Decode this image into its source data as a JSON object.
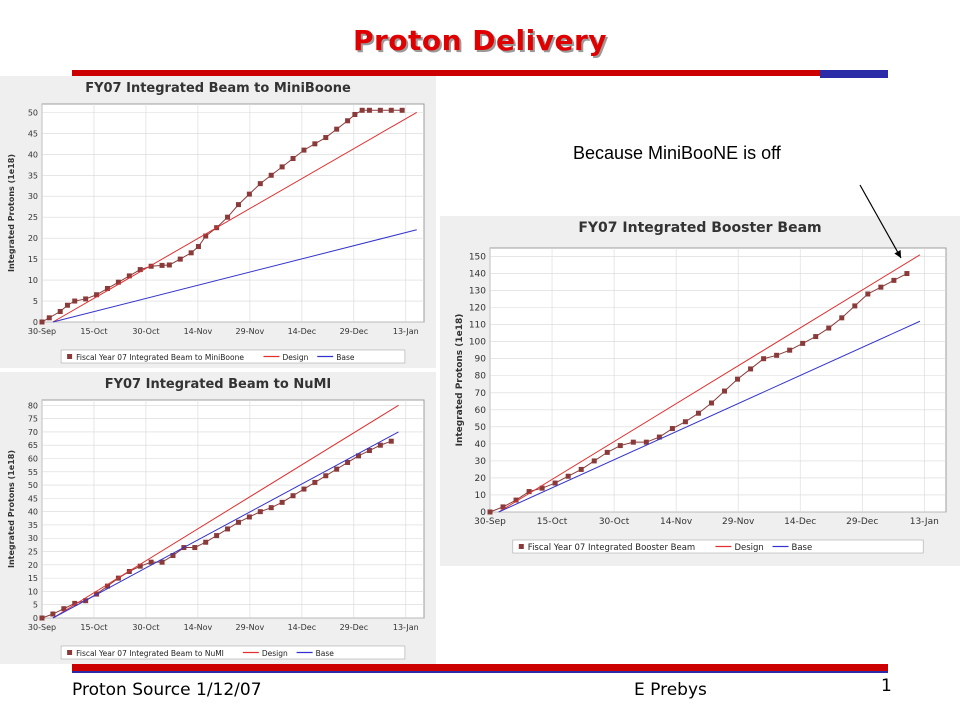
{
  "slide": {
    "title": "Proton Delivery",
    "annotation": "Because MiniBooNE is off",
    "footer_left": "Proton Source 1/12/07",
    "footer_center": "E Prebys",
    "page_number": "1"
  },
  "colors": {
    "title_red": "#e00000",
    "bar_red": "#cc0000",
    "bar_blue": "#2b2ba8",
    "data_marker": "#8b3a3a",
    "design_line": "#e03030",
    "base_line": "#3333cc"
  },
  "chart_data": [
    {
      "id": "miniboone",
      "type": "line",
      "title": "FY07 Integrated Beam to MiniBoone",
      "xlabel": "",
      "ylabel": "Integrated Protons (1e18)",
      "x_ticks": [
        "30-Sep",
        "15-Oct",
        "30-Oct",
        "14-Nov",
        "29-Nov",
        "14-Dec",
        "29-Dec",
        "13-Jan"
      ],
      "xlim": [
        0,
        105
      ],
      "ylim": [
        0,
        52
      ],
      "y_ticks": [
        0,
        5,
        10,
        15,
        20,
        25,
        30,
        35,
        40,
        45,
        50
      ],
      "grid": true,
      "legend": "bottom",
      "series": [
        {
          "name": "Fiscal Year 07 Integrated Beam to MiniBoone",
          "style": "markers",
          "points": [
            [
              0,
              0
            ],
            [
              2,
              1
            ],
            [
              5,
              2.5
            ],
            [
              7,
              4
            ],
            [
              9,
              5
            ],
            [
              12,
              5.5
            ],
            [
              15,
              6.5
            ],
            [
              18,
              8
            ],
            [
              21,
              9.5
            ],
            [
              24,
              11
            ],
            [
              27,
              12.5
            ],
            [
              30,
              13.3
            ],
            [
              33,
              13.5
            ],
            [
              35,
              13.6
            ],
            [
              38,
              15
            ],
            [
              41,
              16.5
            ],
            [
              43,
              18
            ],
            [
              45,
              20.5
            ],
            [
              48,
              22.5
            ],
            [
              51,
              25
            ],
            [
              54,
              28
            ],
            [
              57,
              30.5
            ],
            [
              60,
              33
            ],
            [
              63,
              35
            ],
            [
              66,
              37
            ],
            [
              69,
              39
            ],
            [
              72,
              41
            ],
            [
              75,
              42.5
            ],
            [
              78,
              44
            ],
            [
              81,
              46
            ],
            [
              84,
              48
            ],
            [
              86,
              49.5
            ],
            [
              88,
              50.5
            ],
            [
              90,
              50.5
            ],
            [
              93,
              50.5
            ],
            [
              96,
              50.5
            ],
            [
              99,
              50.5
            ]
          ]
        },
        {
          "name": "Design",
          "style": "line",
          "points": [
            [
              3,
              0
            ],
            [
              103,
              50
            ]
          ]
        },
        {
          "name": "Base",
          "style": "line",
          "points": [
            [
              3,
              0
            ],
            [
              103,
              22
            ]
          ]
        }
      ]
    },
    {
      "id": "numi",
      "type": "line",
      "title": "FY07 Integrated Beam to NuMI",
      "xlabel": "",
      "ylabel": "Integrated Protons (1e18)",
      "x_ticks": [
        "30-Sep",
        "15-Oct",
        "30-Oct",
        "14-Nov",
        "29-Nov",
        "14-Dec",
        "29-Dec",
        "13-Jan"
      ],
      "xlim": [
        0,
        105
      ],
      "ylim": [
        0,
        82
      ],
      "y_ticks": [
        0,
        5,
        10,
        15,
        20,
        25,
        30,
        35,
        40,
        45,
        50,
        55,
        60,
        65,
        70,
        75,
        80
      ],
      "grid": true,
      "legend": "bottom",
      "series": [
        {
          "name": "Fiscal Year 07 Integrated Beam to NuMI",
          "style": "markers",
          "points": [
            [
              0,
              0
            ],
            [
              3,
              1.5
            ],
            [
              6,
              3.5
            ],
            [
              9,
              5.5
            ],
            [
              12,
              6.5
            ],
            [
              15,
              9
            ],
            [
              18,
              12
            ],
            [
              21,
              15
            ],
            [
              24,
              17.5
            ],
            [
              27,
              19.5
            ],
            [
              30,
              21
            ],
            [
              33,
              21
            ],
            [
              36,
              23.5
            ],
            [
              39,
              26.5
            ],
            [
              42,
              26.5
            ],
            [
              45,
              28.5
            ],
            [
              48,
              31
            ],
            [
              51,
              33.5
            ],
            [
              54,
              36
            ],
            [
              57,
              38
            ],
            [
              60,
              40
            ],
            [
              63,
              41.5
            ],
            [
              66,
              43.5
            ],
            [
              69,
              46
            ],
            [
              72,
              48.5
            ],
            [
              75,
              51
            ],
            [
              78,
              53.5
            ],
            [
              81,
              56
            ],
            [
              84,
              58.5
            ],
            [
              87,
              61
            ],
            [
              90,
              63
            ],
            [
              93,
              65
            ],
            [
              96,
              66.5
            ]
          ]
        },
        {
          "name": "Design",
          "style": "line",
          "points": [
            [
              3,
              0
            ],
            [
              98,
              80
            ]
          ]
        },
        {
          "name": "Base",
          "style": "line",
          "points": [
            [
              3,
              0
            ],
            [
              98,
              70
            ]
          ]
        }
      ]
    },
    {
      "id": "booster",
      "type": "line",
      "title": "FY07 Integrated Booster Beam",
      "xlabel": "",
      "ylabel": "Integrated Protons (1e18)",
      "x_ticks": [
        "30-Sep",
        "15-Oct",
        "30-Oct",
        "14-Nov",
        "29-Nov",
        "14-Dec",
        "29-Dec",
        "13-Jan"
      ],
      "xlim": [
        0,
        105
      ],
      "ylim": [
        0,
        155
      ],
      "y_ticks": [
        0,
        10,
        20,
        30,
        40,
        50,
        60,
        70,
        80,
        90,
        100,
        110,
        120,
        130,
        140,
        150
      ],
      "grid": true,
      "legend": "bottom",
      "series": [
        {
          "name": "Fiscal Year 07 Integrated Booster Beam",
          "style": "markers",
          "points": [
            [
              0,
              0
            ],
            [
              3,
              3
            ],
            [
              6,
              7
            ],
            [
              9,
              12
            ],
            [
              12,
              14
            ],
            [
              15,
              17
            ],
            [
              18,
              21
            ],
            [
              21,
              25
            ],
            [
              24,
              30
            ],
            [
              27,
              35
            ],
            [
              30,
              39
            ],
            [
              33,
              41
            ],
            [
              36,
              41
            ],
            [
              39,
              44
            ],
            [
              42,
              49
            ],
            [
              45,
              53
            ],
            [
              48,
              58
            ],
            [
              51,
              64
            ],
            [
              54,
              71
            ],
            [
              57,
              78
            ],
            [
              60,
              84
            ],
            [
              63,
              90
            ],
            [
              66,
              92
            ],
            [
              69,
              95
            ],
            [
              72,
              99
            ],
            [
              75,
              103
            ],
            [
              78,
              108
            ],
            [
              81,
              114
            ],
            [
              84,
              121
            ],
            [
              87,
              128
            ],
            [
              90,
              132
            ],
            [
              93,
              136
            ],
            [
              96,
              140
            ]
          ]
        },
        {
          "name": "Design",
          "style": "line",
          "points": [
            [
              2,
              0
            ],
            [
              99,
              151
            ]
          ]
        },
        {
          "name": "Base",
          "style": "line",
          "points": [
            [
              2,
              0
            ],
            [
              99,
              112
            ]
          ]
        }
      ]
    }
  ]
}
